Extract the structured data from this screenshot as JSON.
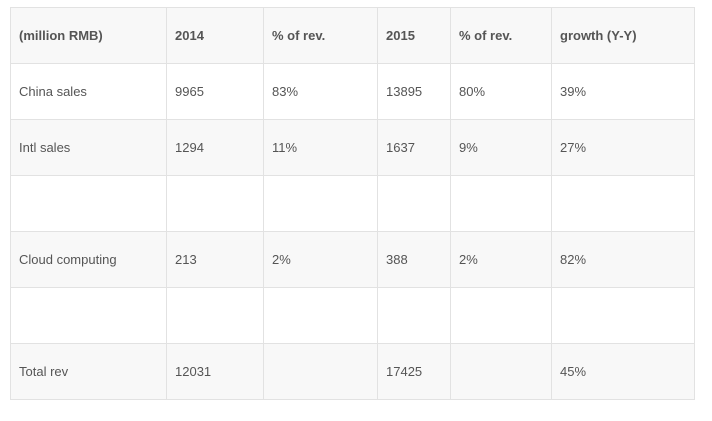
{
  "table": {
    "headers": [
      "(million RMB)",
      "2014",
      "% of rev.",
      "2015",
      "% of rev.",
      "growth (Y-Y)"
    ],
    "rows": [
      [
        "China sales",
        "9965",
        "83%",
        "13895",
        "80%",
        "39%"
      ],
      [
        "Intl sales",
        "1294",
        "11%",
        "1637",
        "9%",
        "27%"
      ],
      [
        "",
        "",
        "",
        "",
        "",
        ""
      ],
      [
        "Cloud computing",
        "213",
        "2%",
        "388",
        "2%",
        "82%"
      ],
      [
        "",
        "",
        "",
        "",
        "",
        ""
      ],
      [
        "Total rev",
        "12031",
        "",
        "17425",
        "",
        "45%"
      ]
    ]
  },
  "colors": {
    "border": "#e2e2e2",
    "text": "#555555",
    "stripe": "#f8f8f8"
  }
}
